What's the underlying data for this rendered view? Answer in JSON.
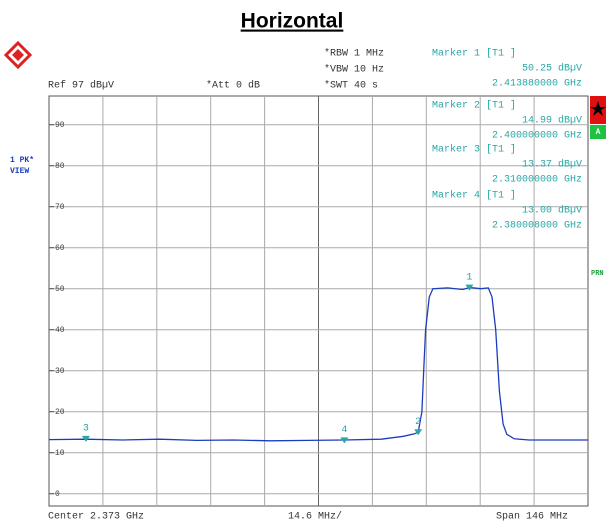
{
  "chart_data": {
    "type": "line",
    "title": "Horizontal",
    "header": {
      "ref": "Ref  97 dBµV",
      "att": "*Att  0 dB",
      "rbw": "*RBW 1 MHz",
      "vbw": "*VBW 10 Hz",
      "swt": "*SWT 40 s"
    },
    "side": {
      "trace": "1 PK*",
      "view": "VIEW",
      "a": "A",
      "prn": "PRN"
    },
    "footer": {
      "center": "Center 2.373 GHz",
      "div": "14.6 MHz/",
      "span": "Span 146 MHz"
    },
    "x": [
      2.3,
      2.31,
      2.32,
      2.33,
      2.34,
      2.35,
      2.36,
      2.37,
      2.38,
      2.39,
      2.396,
      2.399,
      2.4,
      2.401,
      2.4015,
      2.402,
      2.403,
      2.404,
      2.408,
      2.412,
      2.414,
      2.417,
      2.419,
      2.42,
      2.421,
      2.422,
      2.423,
      2.424,
      2.426,
      2.43,
      2.44,
      2.446
    ],
    "series": [
      {
        "color": "#1c3cc0",
        "values": [
          13.2,
          13.3,
          13.1,
          13.3,
          13.0,
          13.1,
          12.9,
          13.0,
          13.1,
          13.3,
          14.0,
          14.6,
          15.0,
          20,
          30,
          40,
          48,
          50,
          50.2,
          49.8,
          50.3,
          50,
          50.2,
          48,
          40,
          25,
          17,
          14.5,
          13.4,
          13.1,
          13.1,
          13.1
        ]
      }
    ],
    "xlim": [
      2.3,
      2.446
    ],
    "ylim": [
      -3,
      97
    ],
    "yticks": [
      0,
      10,
      20,
      30,
      40,
      50,
      60,
      70,
      80,
      90
    ],
    "grid": true,
    "markers": [
      {
        "label": "1",
        "title": "Marker 1 [T1 ]",
        "freq": 2.41388,
        "freq_label": "2.413880000 GHz",
        "level": 50.25,
        "level_label": "50.25 dBµV"
      },
      {
        "label": "2",
        "title": "Marker 2 [T1 ]",
        "freq": 2.4,
        "freq_label": "2.400000000 GHz",
        "level": 14.99,
        "level_label": "14.99 dBµV"
      },
      {
        "label": "3",
        "title": "Marker 3 [T1 ]",
        "freq": 2.31,
        "freq_label": "2.310000000 GHz",
        "level": 13.37,
        "level_label": "13.37 dBµV"
      },
      {
        "label": "4",
        "title": "Marker 4 [T1 ]",
        "freq": 2.380008,
        "freq_label": "2.380008000 GHz",
        "level": 13.0,
        "level_label": "13.00 dBµV"
      }
    ]
  }
}
